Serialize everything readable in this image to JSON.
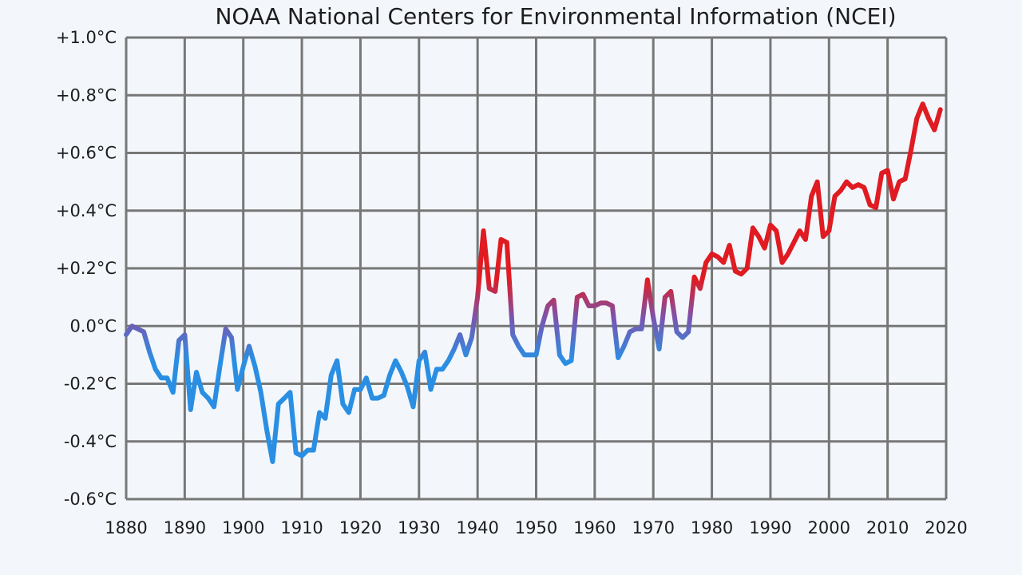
{
  "title": "NOAA National Centers for Environmental Information (NCEI)",
  "chart_data": {
    "type": "line",
    "title": "NOAA National Centers for Environmental Information (NCEI)",
    "xlabel": "",
    "ylabel": "",
    "xlim": [
      1880,
      2020
    ],
    "ylim": [
      -0.6,
      1.0
    ],
    "grid": true,
    "x_ticks": [
      1880,
      1890,
      1900,
      1910,
      1920,
      1930,
      1940,
      1950,
      1960,
      1970,
      1980,
      1990,
      2000,
      2010,
      2020
    ],
    "x_tick_labels": [
      "1880",
      "1890",
      "1900",
      "1910",
      "1920",
      "1930",
      "1940",
      "1950",
      "1960",
      "1970",
      "1980",
      "1990",
      "2000",
      "2010",
      "2020"
    ],
    "y_ticks": [
      1.0,
      0.8,
      0.6,
      0.4,
      0.2,
      0.0,
      -0.2,
      -0.4,
      -0.6
    ],
    "y_tick_labels": [
      "+1.0°C",
      "+0.8°C",
      "+0.6°C",
      "+0.4°C",
      "+0.2°C",
      "0.0°C",
      "-0.2°C",
      "-0.4°C",
      "-0.6°C"
    ],
    "colors": {
      "cool": "#2a8fe3",
      "warm": "#e01b22",
      "grid": "#777777",
      "background": "#f3f7fb"
    },
    "series": [
      {
        "x": [
          1880,
          1881,
          1882,
          1883,
          1884,
          1885,
          1886,
          1887,
          1888,
          1889,
          1890,
          1891,
          1892,
          1893,
          1894,
          1895,
          1896,
          1897,
          1898,
          1899,
          1900,
          1901,
          1902,
          1903,
          1904,
          1905,
          1906,
          1907,
          1908,
          1909,
          1910,
          1911,
          1912,
          1913,
          1914,
          1915,
          1916,
          1917,
          1918,
          1919,
          1920,
          1921,
          1922,
          1923,
          1924,
          1925,
          1926,
          1927,
          1928,
          1929,
          1930,
          1931,
          1932,
          1933,
          1934,
          1935,
          1936,
          1937,
          1938,
          1939,
          1940,
          1941,
          1942,
          1943,
          1944,
          1945,
          1946,
          1947,
          1948,
          1949,
          1950,
          1951,
          1952,
          1953,
          1954,
          1955,
          1956,
          1957,
          1958,
          1959,
          1960,
          1961,
          1962,
          1963,
          1964,
          1965,
          1966,
          1967,
          1968,
          1969,
          1970,
          1971,
          1972,
          1973,
          1974,
          1975,
          1976,
          1977,
          1978,
          1979,
          1980,
          1981,
          1982,
          1983,
          1984,
          1985,
          1986,
          1987,
          1988,
          1989,
          1990,
          1991,
          1992,
          1993,
          1994,
          1995,
          1996,
          1997,
          1998,
          1999,
          2000,
          2001,
          2002,
          2003,
          2004,
          2005,
          2006,
          2007,
          2008,
          2009,
          2010,
          2011,
          2012,
          2013,
          2014,
          2015,
          2016,
          2017,
          2018,
          2019
        ],
        "y": [
          -0.03,
          0.0,
          -0.01,
          -0.02,
          -0.09,
          -0.15,
          -0.18,
          -0.18,
          -0.23,
          -0.05,
          -0.03,
          -0.29,
          -0.16,
          -0.23,
          -0.25,
          -0.28,
          -0.14,
          -0.01,
          -0.04,
          -0.22,
          -0.14,
          -0.07,
          -0.14,
          -0.23,
          -0.36,
          -0.47,
          -0.27,
          -0.25,
          -0.23,
          -0.44,
          -0.45,
          -0.43,
          -0.43,
          -0.3,
          -0.32,
          -0.17,
          -0.12,
          -0.27,
          -0.3,
          -0.22,
          -0.22,
          -0.18,
          -0.25,
          -0.25,
          -0.24,
          -0.17,
          -0.12,
          -0.16,
          -0.21,
          -0.28,
          -0.12,
          -0.09,
          -0.22,
          -0.15,
          -0.15,
          -0.12,
          -0.08,
          -0.03,
          -0.1,
          -0.04,
          0.1,
          0.33,
          0.13,
          0.12,
          0.3,
          0.29,
          -0.03,
          -0.07,
          -0.1,
          -0.1,
          -0.1,
          0.0,
          0.07,
          0.09,
          -0.1,
          -0.13,
          -0.12,
          0.1,
          0.11,
          0.07,
          0.07,
          0.08,
          0.08,
          0.07,
          -0.11,
          -0.07,
          -0.02,
          -0.01,
          -0.01,
          0.16,
          0.03,
          -0.08,
          0.1,
          0.12,
          -0.02,
          -0.04,
          -0.02,
          0.17,
          0.13,
          0.22,
          0.25,
          0.24,
          0.22,
          0.28,
          0.19,
          0.18,
          0.2,
          0.34,
          0.31,
          0.27,
          0.35,
          0.33,
          0.22,
          0.25,
          0.29,
          0.33,
          0.3,
          0.45,
          0.5,
          0.31,
          0.33,
          0.45,
          0.47,
          0.5,
          0.48,
          0.49,
          0.48,
          0.42,
          0.41,
          0.53,
          0.54,
          0.44,
          0.5,
          0.51,
          0.61,
          0.72,
          0.77,
          0.72,
          0.68,
          0.75
        ]
      }
    ]
  }
}
